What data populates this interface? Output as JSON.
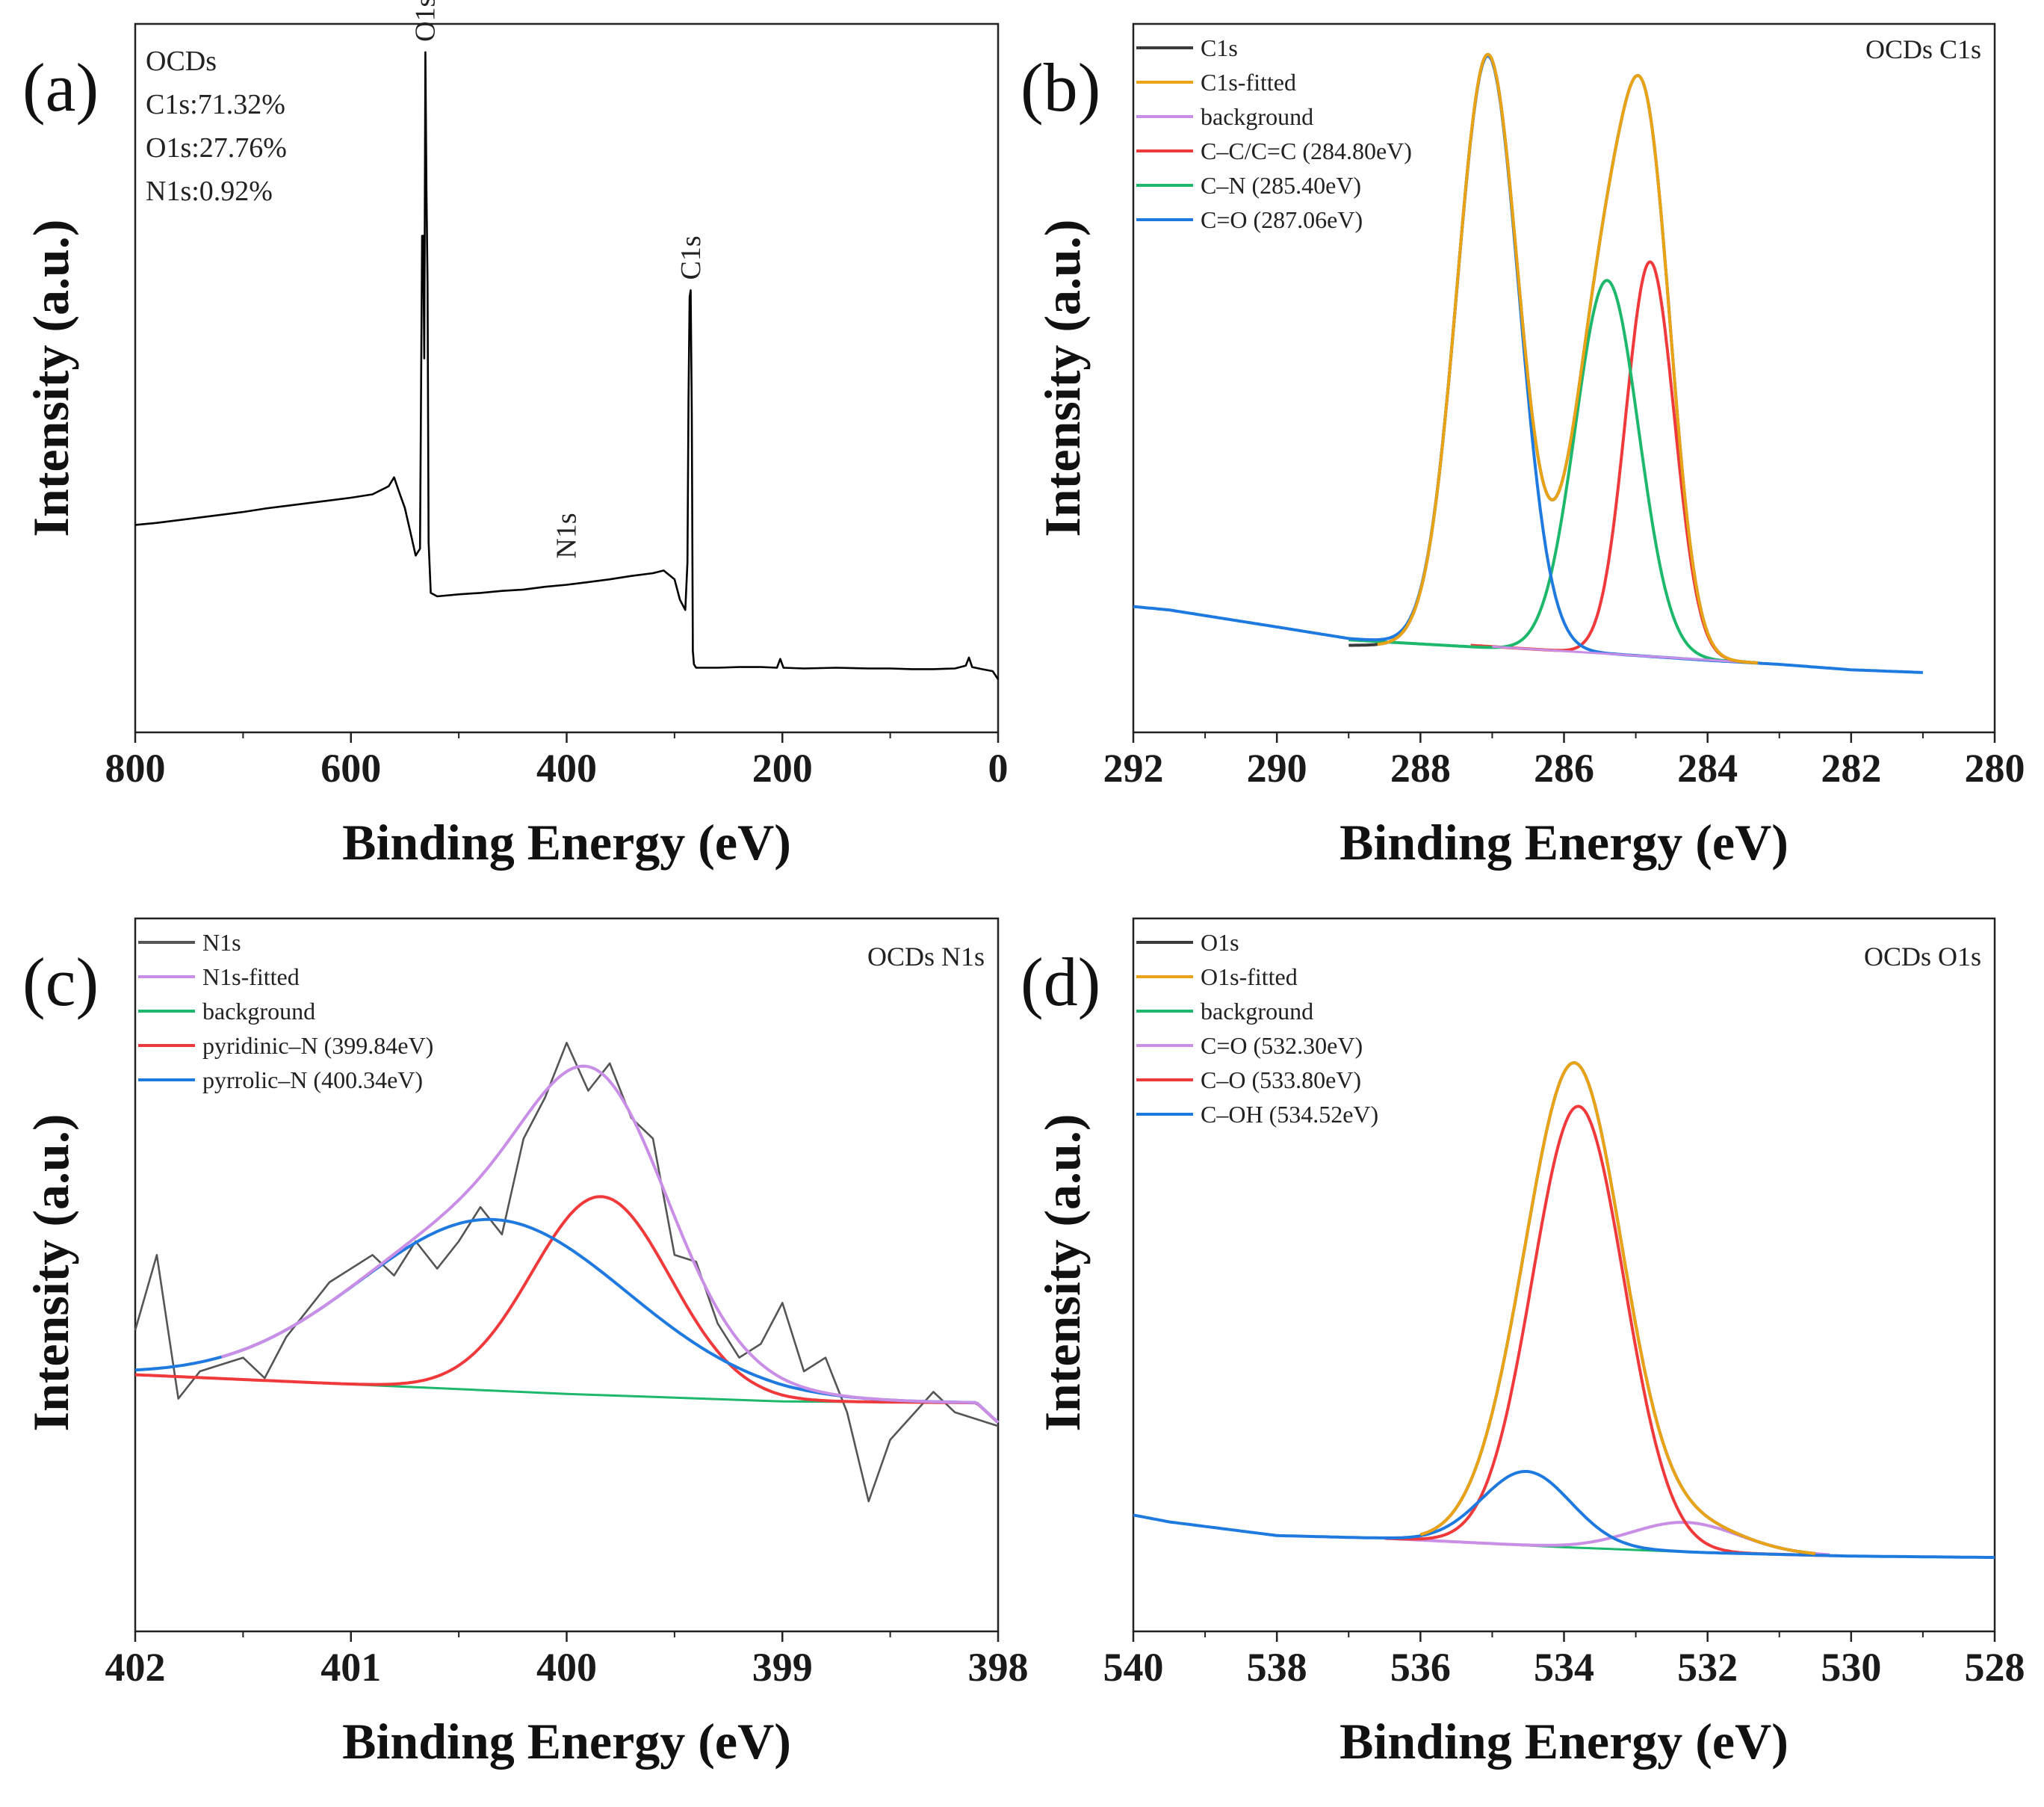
{
  "chart_data": [
    {
      "id": "a",
      "type": "line",
      "panel_label": "(a)",
      "xlabel": "Binding Energy (eV)",
      "ylabel": "Intensity (a.u.)",
      "xlim": [
        800,
        0
      ],
      "ylim": [
        0,
        100
      ],
      "xticks": [
        "800",
        "600",
        "400",
        "200",
        "0"
      ],
      "text_block": [
        "OCDs",
        "C1s:71.32%",
        "O1s:27.76%",
        "N1s:0.92%"
      ],
      "peak_labels": [
        {
          "text": "O1s",
          "x": 531,
          "y": 100
        },
        {
          "text": "C1s",
          "x": 284.6,
          "y": 65
        },
        {
          "text": "N1s",
          "x": 400,
          "y": 24
        }
      ],
      "series": [
        {
          "name": "survey",
          "color": "#000000",
          "points": [
            [
              800,
              30.5
            ],
            [
              780,
              30.8
            ],
            [
              760,
              31.2
            ],
            [
              740,
              31.6
            ],
            [
              720,
              32.0
            ],
            [
              700,
              32.4
            ],
            [
              680,
              32.9
            ],
            [
              660,
              33.3
            ],
            [
              640,
              33.7
            ],
            [
              620,
              34.1
            ],
            [
              600,
              34.5
            ],
            [
              580,
              35.0
            ],
            [
              565,
              36.2
            ],
            [
              560,
              37.5
            ],
            [
              555,
              35.2
            ],
            [
              550,
              33.0
            ],
            [
              545,
              29.5
            ],
            [
              540,
              26.0
            ],
            [
              536,
              27.0
            ],
            [
              534,
              73.0
            ],
            [
              533,
              73.0
            ],
            [
              532,
              55.0
            ],
            [
              531,
              100.0
            ],
            [
              530,
              80.0
            ],
            [
              529,
              66.0
            ],
            [
              528,
              28.0
            ],
            [
              526,
              20.5
            ],
            [
              520,
              20.0
            ],
            [
              500,
              20.3
            ],
            [
              480,
              20.5
            ],
            [
              460,
              20.8
            ],
            [
              440,
              21.0
            ],
            [
              420,
              21.4
            ],
            [
              400,
              21.7
            ],
            [
              380,
              22.1
            ],
            [
              360,
              22.5
            ],
            [
              340,
              23.0
            ],
            [
              320,
              23.4
            ],
            [
              310,
              23.8
            ],
            [
              300,
              22.5
            ],
            [
              295,
              19.5
            ],
            [
              290,
              18.0
            ],
            [
              288,
              25.0
            ],
            [
              287,
              49.0
            ],
            [
              286,
              64.0
            ],
            [
              285,
              65.0
            ],
            [
              284,
              47.0
            ],
            [
              283,
              12.0
            ],
            [
              282,
              10.0
            ],
            [
              280,
              9.5
            ],
            [
              260,
              9.5
            ],
            [
              240,
              9.6
            ],
            [
              220,
              9.6
            ],
            [
              205,
              9.5
            ],
            [
              202,
              10.8
            ],
            [
              199,
              9.5
            ],
            [
              180,
              9.4
            ],
            [
              150,
              9.5
            ],
            [
              120,
              9.4
            ],
            [
              100,
              9.4
            ],
            [
              80,
              9.3
            ],
            [
              60,
              9.3
            ],
            [
              40,
              9.4
            ],
            [
              30,
              9.8
            ],
            [
              27,
              11.0
            ],
            [
              24,
              9.6
            ],
            [
              15,
              9.3
            ],
            [
              5,
              9.0
            ],
            [
              0,
              7.8
            ]
          ]
        }
      ]
    },
    {
      "id": "b",
      "type": "line",
      "panel_label": "(b)",
      "title": "OCDs C1s",
      "xlabel": "Binding Energy (eV)",
      "ylabel": "Intensity (a.u.)",
      "xlim": [
        292,
        280
      ],
      "ylim": [
        0,
        100
      ],
      "xticks": [
        "292",
        "290",
        "288",
        "286",
        "284",
        "282",
        "280"
      ],
      "legend": [
        {
          "label": "C1s",
          "color": "#3a3a3a"
        },
        {
          "label": "C1s-fitted",
          "color": "#e8a317"
        },
        {
          "label": "background",
          "color": "#c98ee6"
        },
        {
          "label": "C–C/C=C (284.80eV)",
          "color": "#f0393b"
        },
        {
          "label": "C–N (285.40eV)",
          "color": "#1db86b"
        },
        {
          "label": "C=O (287.06eV)",
          "color": "#1f7ae0"
        }
      ],
      "series": [
        {
          "name": "C–C/C=C (284.80eV)",
          "type": "gaussian",
          "center": 284.8,
          "height": 58,
          "sigma": 0.34,
          "color": "#f0393b",
          "domain": [
            287.3,
            283.3
          ],
          "baseline": {
            "x": [
              287.3,
              283.3
            ],
            "y": [
              12.8,
              10.2
            ]
          }
        },
        {
          "name": "C–N (285.40eV)",
          "type": "gaussian",
          "center": 285.4,
          "height": 55,
          "sigma": 0.44,
          "color": "#1db86b",
          "domain": [
            289.0,
            283.3
          ],
          "baseline": {
            "x": [
              289.0,
              283.3
            ],
            "y": [
              13.6,
              10.2
            ]
          }
        },
        {
          "name": "C=O (287.06eV)",
          "type": "gaussian",
          "center": 287.06,
          "height": 87,
          "sigma": 0.43,
          "color": "#1f7ae0",
          "domain": [
            292.0,
            281.0
          ],
          "baseline": {
            "x": [
              292.0,
              291.5,
              290.0,
              289.0,
              288.0,
              286.0,
              284.0,
              283.0,
              282.0,
              281.0
            ],
            "y": [
              18.5,
              18.0,
              15.5,
              13.8,
              13.0,
              12.0,
              10.6,
              10.0,
              9.2,
              8.8
            ]
          }
        },
        {
          "name": "background",
          "type": "linear",
          "color": "#c98ee6",
          "x": [
            287.0,
            285.0,
            283.3
          ],
          "y": [
            12.6,
            11.3,
            10.2
          ]
        },
        {
          "name": "C1s",
          "type": "sum",
          "color": "#3a3a3a",
          "domain": [
            289.0,
            283.3
          ],
          "components": [
            "C–C/C=C (284.80eV)",
            "C–N (285.40eV)",
            "C=O (287.06eV)"
          ]
        },
        {
          "name": "C1s-fitted",
          "type": "sum",
          "color": "#e8a317",
          "domain": [
            288.6,
            283.3
          ],
          "components": [
            "C–C/C=C (284.80eV)",
            "C–N (285.40eV)",
            "C=O (287.06eV)"
          ]
        }
      ]
    },
    {
      "id": "c",
      "type": "line",
      "panel_label": "(c)",
      "title": "OCDs N1s",
      "xlabel": "Binding Energy (eV)",
      "ylabel": "Intensity (a.u.)",
      "xlim": [
        402,
        398
      ],
      "ylim": [
        0,
        100
      ],
      "xticks": [
        "402",
        "401",
        "400",
        "399",
        "398"
      ],
      "legend": [
        {
          "label": "N1s",
          "color": "#555555"
        },
        {
          "label": "N1s-fitted",
          "color": "#c98ee6"
        },
        {
          "label": "background",
          "color": "#1db86b"
        },
        {
          "label": "pyridinic–N (399.84eV)",
          "color": "#f0393b"
        },
        {
          "label": "pyrrolic–N (400.34eV)",
          "color": "#1f7ae0"
        }
      ],
      "series": [
        {
          "name": "N1s",
          "color": "#555555",
          "points": [
            [
              402.0,
              44
            ],
            [
              401.9,
              55
            ],
            [
              401.8,
              34
            ],
            [
              401.7,
              38
            ],
            [
              401.5,
              40
            ],
            [
              401.4,
              37
            ],
            [
              401.3,
              43
            ],
            [
              401.1,
              51
            ],
            [
              400.9,
              55
            ],
            [
              400.8,
              52
            ],
            [
              400.7,
              57
            ],
            [
              400.6,
              53
            ],
            [
              400.5,
              57
            ],
            [
              400.4,
              62
            ],
            [
              400.3,
              58
            ],
            [
              400.2,
              72
            ],
            [
              400.1,
              78
            ],
            [
              400.0,
              86
            ],
            [
              399.9,
              79
            ],
            [
              399.8,
              83
            ],
            [
              399.7,
              75
            ],
            [
              399.6,
              72
            ],
            [
              399.5,
              55
            ],
            [
              399.4,
              54
            ],
            [
              399.3,
              45
            ],
            [
              399.2,
              40
            ],
            [
              399.1,
              42
            ],
            [
              399.0,
              48
            ],
            [
              398.9,
              38
            ],
            [
              398.8,
              40
            ],
            [
              398.7,
              32
            ],
            [
              398.6,
              19
            ],
            [
              398.5,
              28
            ],
            [
              398.3,
              35
            ],
            [
              398.2,
              32
            ],
            [
              398.0,
              30
            ]
          ]
        },
        {
          "name": "background",
          "type": "linear",
          "color": "#1db86b",
          "x": [
            401.5,
            400.0,
            399.0,
            398.5,
            398.1,
            398.0
          ],
          "y": [
            36.8,
            34.7,
            33.6,
            33.5,
            33.4,
            30.5
          ]
        },
        {
          "name": "pyridinic–N (399.84eV)",
          "type": "gaussian",
          "center": 399.84,
          "height": 29,
          "sigma": 0.32,
          "color": "#f0393b",
          "domain": [
            402.0,
            398.0
          ],
          "baseline": {
            "x": [
              402.0,
              401.5,
              400.0,
              399.0,
              398.5,
              398.1,
              398.0
            ],
            "y": [
              37.5,
              36.8,
              34.7,
              33.6,
              33.5,
              33.4,
              30.5
            ]
          }
        },
        {
          "name": "pyrrolic–N (400.34eV)",
          "type": "gaussian",
          "center": 400.34,
          "height": 25,
          "sigma": 0.62,
          "color": "#1f7ae0",
          "domain": [
            402.0,
            398.0
          ],
          "baseline": {
            "x": [
              402.0,
              401.5,
              400.0,
              399.0,
              398.5,
              398.1,
              398.0
            ],
            "y": [
              37.5,
              36.8,
              34.7,
              33.6,
              33.5,
              33.4,
              30.5
            ]
          }
        },
        {
          "name": "N1s-fitted",
          "type": "sum",
          "color": "#c98ee6",
          "domain": [
            401.6,
            398.0
          ],
          "components": [
            "pyridinic–N (399.84eV)",
            "pyrrolic–N (400.34eV)"
          ]
        }
      ]
    },
    {
      "id": "d",
      "type": "line",
      "panel_label": "(d)",
      "title": "OCDs O1s",
      "xlabel": "Binding Energy (eV)",
      "ylabel": "Intensity (a.u.)",
      "xlim": [
        540,
        528
      ],
      "ylim": [
        0,
        100
      ],
      "xticks": [
        "540",
        "538",
        "536",
        "534",
        "532",
        "530",
        "528"
      ],
      "legend": [
        {
          "label": "O1s",
          "color": "#3a3a3a"
        },
        {
          "label": "O1s-fitted",
          "color": "#e8a317"
        },
        {
          "label": "background",
          "color": "#1db86b"
        },
        {
          "label": "C=O (532.30eV)",
          "color": "#c98ee6"
        },
        {
          "label": "C–O (533.80eV)",
          "color": "#f0393b"
        },
        {
          "label": "C–OH (534.52eV)",
          "color": "#1f7ae0"
        }
      ],
      "series": [
        {
          "name": "background",
          "type": "linear",
          "color": "#1db86b",
          "x": [
            536.5,
            534.0,
            532.0,
            530.0
          ],
          "y": [
            13.6,
            12.3,
            11.5,
            11.0
          ]
        },
        {
          "name": "C=O (532.30eV)",
          "type": "gaussian",
          "center": 532.3,
          "height": 4.3,
          "sigma": 0.75,
          "color": "#c98ee6",
          "domain": [
            536.5,
            530.3
          ],
          "baseline": {
            "x": [
              536.5,
              534.0,
              532.0,
              530.0
            ],
            "y": [
              13.6,
              12.3,
              11.5,
              11.0
            ]
          }
        },
        {
          "name": "C–O (533.80eV)",
          "type": "gaussian",
          "center": 533.8,
          "height": 64.5,
          "sigma": 0.64,
          "color": "#f0393b",
          "domain": [
            536.5,
            530.3
          ],
          "baseline": {
            "x": [
              536.5,
              534.0,
              532.0,
              530.0
            ],
            "y": [
              13.6,
              12.3,
              11.5,
              11.0
            ]
          }
        },
        {
          "name": "C–OH (534.52eV)",
          "type": "gaussian",
          "center": 534.52,
          "height": 10.8,
          "sigma": 0.62,
          "color": "#1f7ae0",
          "domain": [
            540.0,
            528.0
          ],
          "baseline": {
            "x": [
              540.0,
              539.5,
              538.0,
              536.5,
              534.0,
              532.0,
              530.0,
              528.0
            ],
            "y": [
              17.0,
              16.0,
              14.0,
              13.6,
              12.3,
              11.5,
              11.0,
              10.8
            ]
          }
        },
        {
          "name": "O1s",
          "type": "sum",
          "color": "#3a3a3a",
          "domain": [
            536.0,
            530.5
          ],
          "components": [
            "C=O (532.30eV)",
            "C–O (533.80eV)",
            "C–OH (534.52eV)"
          ]
        },
        {
          "name": "O1s-fitted",
          "type": "sum",
          "color": "#e8a317",
          "domain": [
            536.0,
            530.5
          ],
          "components": [
            "C=O (532.30eV)",
            "C–O (533.80eV)",
            "C–OH (534.52eV)"
          ]
        }
      ]
    }
  ]
}
